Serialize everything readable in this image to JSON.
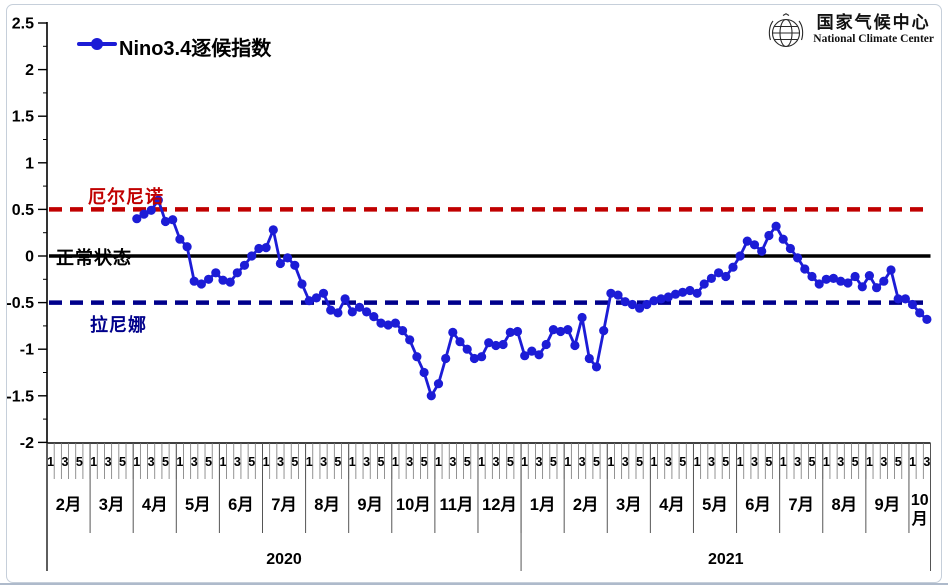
{
  "legend": {
    "label": "Nino3.4逐候指数"
  },
  "logo": {
    "title_cn": "国家气候中心",
    "title_en": "National Climate Center"
  },
  "colors": {
    "series": "#1c1cd6",
    "el_nino_line": "#c00000",
    "normal_line": "#000000",
    "la_nina_line": "#00008b"
  },
  "chart_data": {
    "type": "line",
    "title": "Nino3.4逐候指数",
    "ylim": [
      -2,
      2.5
    ],
    "y_ticks": [
      2.5,
      2,
      1.5,
      1,
      0.5,
      0,
      -0.5,
      -1,
      -1.5,
      -2
    ],
    "grid": "off",
    "legend_position": "top-left",
    "reference_lines": [
      {
        "label": "厄尔尼诺",
        "value": 0.5,
        "color": "#c00000",
        "style": "dashed"
      },
      {
        "label": "正常状态",
        "value": 0,
        "color": "#000000",
        "style": "solid"
      },
      {
        "label": "拉尼娜",
        "value": -0.5,
        "color": "#00008b",
        "style": "dashed"
      }
    ],
    "x_axis": {
      "unit": "候 (pentad)",
      "pentad_numbering": "odd pentads labeled 1,3,5 per month",
      "months": [
        {
          "label": "2月",
          "pentads": 6
        },
        {
          "label": "3月",
          "pentads": 6
        },
        {
          "label": "4月",
          "pentads": 6
        },
        {
          "label": "5月",
          "pentads": 6
        },
        {
          "label": "6月",
          "pentads": 6
        },
        {
          "label": "7月",
          "pentads": 6
        },
        {
          "label": "8月",
          "pentads": 6
        },
        {
          "label": "9月",
          "pentads": 6
        },
        {
          "label": "10月",
          "pentads": 6
        },
        {
          "label": "11月",
          "pentads": 6
        },
        {
          "label": "12月",
          "pentads": 6
        },
        {
          "label": "1月",
          "pentads": 6
        },
        {
          "label": "2月",
          "pentads": 6
        },
        {
          "label": "3月",
          "pentads": 6
        },
        {
          "label": "4月",
          "pentads": 6
        },
        {
          "label": "5月",
          "pentads": 6
        },
        {
          "label": "6月",
          "pentads": 6
        },
        {
          "label": "7月",
          "pentads": 6
        },
        {
          "label": "8月",
          "pentads": 6
        },
        {
          "label": "9月",
          "pentads": 6
        },
        {
          "label": "10月",
          "pentads": 3
        }
      ],
      "years": [
        {
          "label": "2020",
          "pentads": 66
        },
        {
          "label": "2021",
          "pentads": 57
        }
      ]
    },
    "series": [
      {
        "name": "Nino3.4逐候指数",
        "color": "#1c1cd6",
        "start_pentad_offset": 12,
        "start_label": "2020年4月第1候",
        "values": [
          0.4,
          0.45,
          0.49,
          0.6,
          0.37,
          0.39,
          0.18,
          0.1,
          -0.27,
          -0.3,
          -0.25,
          -0.18,
          -0.26,
          -0.28,
          -0.18,
          -0.1,
          0.0,
          0.08,
          0.09,
          0.28,
          -0.08,
          -0.02,
          -0.1,
          -0.3,
          -0.48,
          -0.45,
          -0.4,
          -0.58,
          -0.61,
          -0.46,
          -0.6,
          -0.55,
          -0.6,
          -0.65,
          -0.72,
          -0.74,
          -0.72,
          -0.8,
          -0.9,
          -1.08,
          -1.25,
          -1.5,
          -1.37,
          -1.1,
          -0.82,
          -0.92,
          -1.0,
          -1.1,
          -1.08,
          -0.93,
          -0.96,
          -0.95,
          -0.82,
          -0.81,
          -1.07,
          -1.02,
          -1.06,
          -0.95,
          -0.79,
          -0.81,
          -0.79,
          -0.96,
          -0.66,
          -1.1,
          -1.19,
          -0.8,
          -0.4,
          -0.42,
          -0.49,
          -0.52,
          -0.56,
          -0.52,
          -0.48,
          -0.46,
          -0.44,
          -0.41,
          -0.39,
          -0.37,
          -0.4,
          -0.3,
          -0.24,
          -0.18,
          -0.22,
          -0.12,
          0.0,
          0.16,
          0.12,
          0.05,
          0.22,
          0.32,
          0.18,
          0.08,
          -0.02,
          -0.14,
          -0.22,
          -0.3,
          -0.25,
          -0.24,
          -0.27,
          -0.29,
          -0.22,
          -0.33,
          -0.21,
          -0.34,
          -0.27,
          -0.15,
          -0.46,
          -0.46,
          -0.52,
          -0.61,
          -0.68
        ]
      }
    ]
  }
}
